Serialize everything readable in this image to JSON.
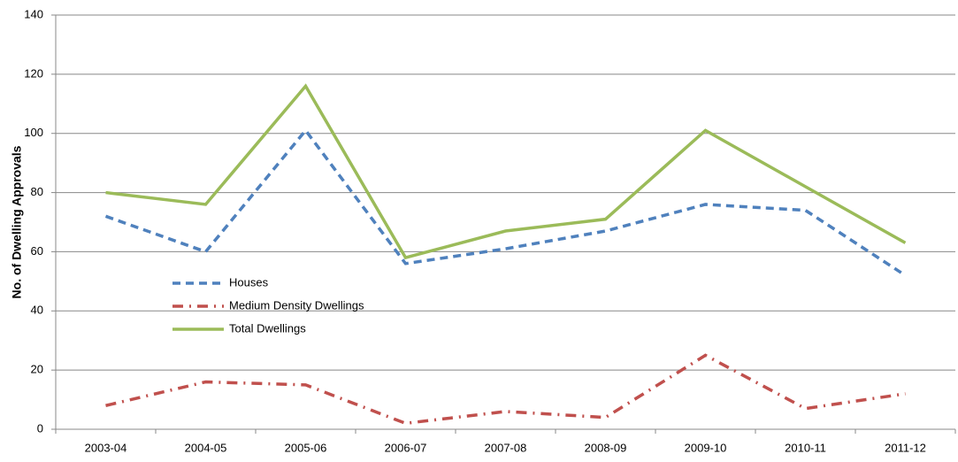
{
  "chart_data": {
    "type": "line",
    "y_label": "No. of Dwelling Approvals",
    "categories": [
      "2003-04",
      "2004-05",
      "2005-06",
      "2006-07",
      "2007-08",
      "2008-09",
      "2009-10",
      "2010-11",
      "2011-12"
    ],
    "series": [
      {
        "name": "Houses",
        "color": "#4f81bd",
        "style": "dashed",
        "values": [
          72,
          60,
          101,
          56,
          61,
          67,
          76,
          74,
          52
        ]
      },
      {
        "name": "Medium Density Dwellings",
        "color": "#c0504d",
        "style": "dashdot",
        "values": [
          8,
          16,
          15,
          2,
          6,
          4,
          25,
          7,
          12
        ]
      },
      {
        "name": "Total Dwellings",
        "color": "#9bbb59",
        "style": "solid",
        "values": [
          80,
          76,
          116,
          58,
          67,
          71,
          101,
          82,
          63
        ]
      }
    ],
    "ylim": [
      0,
      140
    ],
    "yticks": [
      0,
      20,
      40,
      60,
      80,
      100,
      120,
      140
    ],
    "grid": true,
    "legend": "left"
  }
}
